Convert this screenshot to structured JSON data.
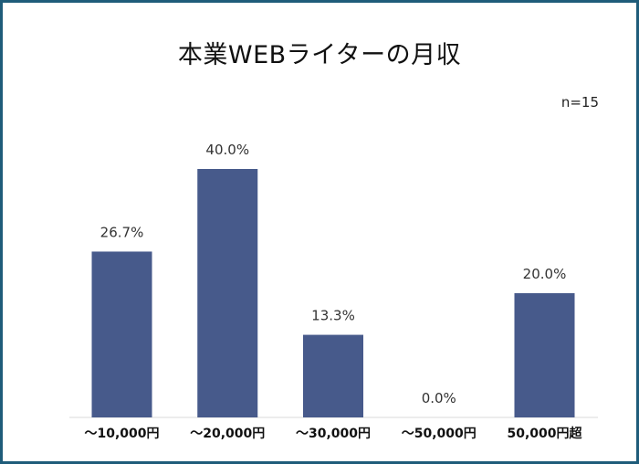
{
  "chart_data": {
    "type": "bar",
    "title": "本業WEBライターの月収",
    "note": "n=15",
    "categories": [
      "〜10,000円",
      "〜20,000円",
      "〜30,000円",
      "〜50,000円",
      "50,000円超"
    ],
    "values": [
      26.7,
      40.0,
      13.3,
      0.0,
      20.0
    ],
    "data_labels": [
      "26.7%",
      "40.0%",
      "13.3%",
      "0.0%",
      "20.0%"
    ],
    "ylim": [
      0,
      40
    ],
    "grid": false,
    "legend": "none",
    "bar_color": "#475a8b",
    "frame_color": "#1f5c7a"
  }
}
